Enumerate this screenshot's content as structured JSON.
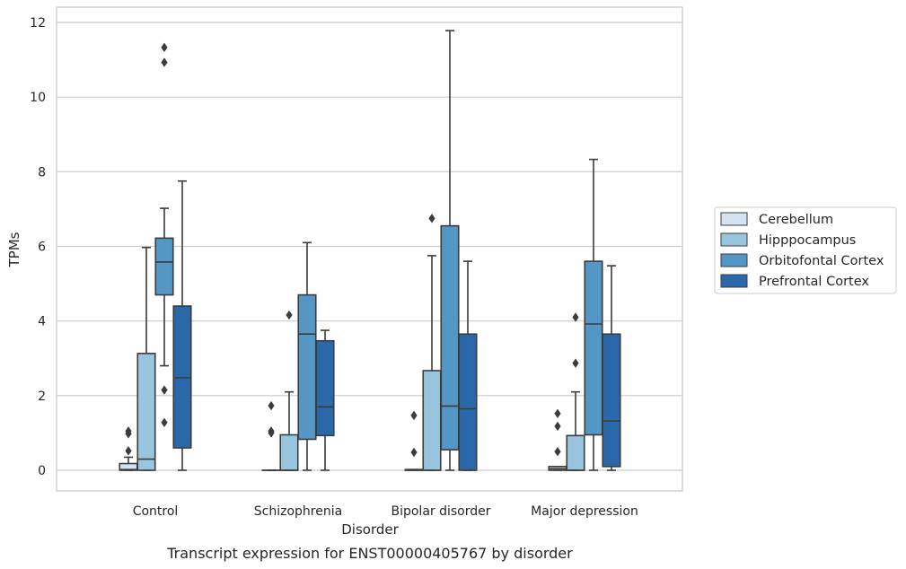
{
  "chart_data": {
    "type": "box",
    "title": "",
    "caption": "Transcript expression for ENST00000405767 by disorder",
    "xlabel": "Disorder",
    "ylabel": "TPMs",
    "ylim": [
      -0.58,
      12.38
    ],
    "yticks": [
      "0",
      "2",
      "4",
      "6",
      "8",
      "10",
      "12"
    ],
    "grid": "horizontal",
    "legend_position": "right",
    "categories": [
      "Control",
      "Schizophrenia",
      "Bipolar disorder",
      "Major depression"
    ],
    "series": [
      {
        "name": "Cerebellum",
        "color": "#d4e3f2",
        "boxes": [
          {
            "q1": 0,
            "median": 0.02,
            "q3": 0.18,
            "whisker_low": 0,
            "whisker_high": 0.35,
            "outliers": [
              0.52,
              0.98,
              1.05
            ]
          },
          {
            "q1": 0,
            "median": 0,
            "q3": 0,
            "whisker_low": 0,
            "whisker_high": 0,
            "outliers": [
              1.0,
              1.05,
              1.73
            ]
          },
          {
            "q1": 0,
            "median": 0,
            "q3": 0.02,
            "whisker_low": 0,
            "whisker_high": 0.02,
            "outliers": [
              0.48,
              1.47
            ]
          },
          {
            "q1": 0,
            "median": 0.04,
            "q3": 0.1,
            "whisker_low": 0,
            "whisker_high": 0.1,
            "outliers": [
              0.5,
              1.18,
              1.52
            ]
          }
        ]
      },
      {
        "name": "Hipppocampus",
        "color": "#9ac5df",
        "boxes": [
          {
            "q1": 0,
            "median": 0.3,
            "q3": 3.13,
            "whisker_low": 0,
            "whisker_high": 5.97,
            "outliers": []
          },
          {
            "q1": 0,
            "median": 0,
            "q3": 0.95,
            "whisker_low": 0,
            "whisker_high": 2.1,
            "outliers": [
              4.16
            ]
          },
          {
            "q1": 0,
            "median": 0,
            "q3": 2.67,
            "whisker_low": 0,
            "whisker_high": 5.75,
            "outliers": [
              6.75
            ]
          },
          {
            "q1": 0,
            "median": 0,
            "q3": 0.93,
            "whisker_low": 0,
            "whisker_high": 2.1,
            "outliers": [
              2.87,
              4.1
            ]
          }
        ]
      },
      {
        "name": "Orbitofontal Cortex",
        "color": "#5497c5",
        "boxes": [
          {
            "q1": 4.7,
            "median": 5.58,
            "q3": 6.22,
            "whisker_low": 2.8,
            "whisker_high": 7.02,
            "outliers": [
              1.28,
              2.15,
              10.93,
              11.33
            ]
          },
          {
            "q1": 0.83,
            "median": 3.65,
            "q3": 4.7,
            "whisker_low": 0,
            "whisker_high": 6.1,
            "outliers": []
          },
          {
            "q1": 0.55,
            "median": 1.72,
            "q3": 6.55,
            "whisker_low": 0,
            "whisker_high": 11.78,
            "outliers": []
          },
          {
            "q1": 0.95,
            "median": 3.92,
            "q3": 5.6,
            "whisker_low": 0,
            "whisker_high": 8.33,
            "outliers": []
          }
        ]
      },
      {
        "name": "Prefrontal Cortex",
        "color": "#2a68a9",
        "boxes": [
          {
            "q1": 0.6,
            "median": 2.48,
            "q3": 4.4,
            "whisker_low": 0,
            "whisker_high": 7.75,
            "outliers": []
          },
          {
            "q1": 0.93,
            "median": 1.7,
            "q3": 3.47,
            "whisker_low": 0,
            "whisker_high": 3.75,
            "outliers": []
          },
          {
            "q1": 0,
            "median": 1.65,
            "q3": 3.65,
            "whisker_low": 0,
            "whisker_high": 5.6,
            "outliers": []
          },
          {
            "q1": 0.1,
            "median": 1.32,
            "q3": 3.65,
            "whisker_low": 0,
            "whisker_high": 5.48,
            "outliers": []
          }
        ]
      }
    ]
  }
}
